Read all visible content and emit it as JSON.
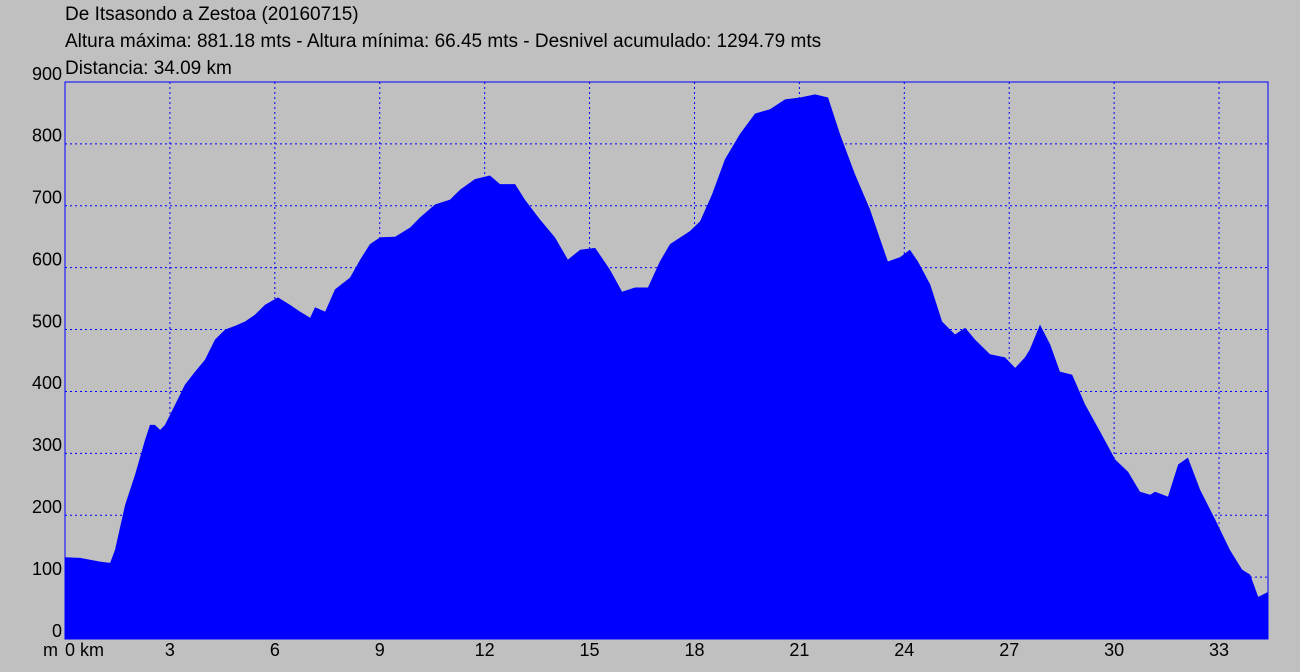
{
  "chart_data": {
    "type": "area",
    "title": "De Itsasondo a Zestoa (20160715)",
    "subtitle_lines": [
      "Altura máxima: 881.18 mts - Altura mínima: 66.45 mts - Desnivel acumulado: 1294.79 mts",
      "Distancia: 34.09 km"
    ],
    "y_unit": "m",
    "color": "#0000ff",
    "grid": true,
    "xlim": [
      0,
      34.4
    ],
    "ylim": [
      0,
      900
    ],
    "xticks": [
      {
        "value": 0,
        "label": "0 km"
      },
      3,
      6,
      9,
      12,
      15,
      18,
      21,
      24,
      27,
      30,
      33
    ],
    "yticks": [
      0,
      100,
      200,
      300,
      400,
      500,
      600,
      700,
      800,
      900
    ],
    "x": [
      0,
      0.43,
      1.0,
      1.29,
      1.43,
      1.72,
      2.0,
      2.29,
      2.43,
      2.57,
      2.72,
      2.86,
      3.15,
      3.43,
      3.72,
      4.0,
      4.29,
      4.58,
      4.86,
      5.15,
      5.43,
      5.72,
      6.09,
      6.43,
      6.72,
      7.01,
      7.15,
      7.44,
      7.72,
      8.15,
      8.44,
      8.72,
      9.01,
      9.44,
      9.87,
      10.15,
      10.58,
      11.01,
      11.3,
      11.72,
      12.15,
      12.44,
      12.87,
      13.15,
      13.58,
      14.01,
      14.38,
      14.73,
      15.16,
      15.58,
      15.93,
      16.3,
      16.67,
      17.01,
      17.3,
      17.87,
      18.16,
      18.5,
      18.87,
      19.3,
      19.73,
      20.16,
      20.59,
      21.02,
      21.45,
      21.82,
      22.16,
      22.59,
      23.02,
      23.31,
      23.53,
      23.88,
      24.16,
      24.39,
      24.74,
      25.08,
      25.45,
      25.74,
      26.02,
      26.45,
      26.88,
      27.17,
      27.45,
      27.59,
      27.88,
      28.17,
      28.45,
      28.8,
      29.17,
      29.6,
      30.03,
      30.4,
      30.74,
      31.03,
      31.17,
      31.54,
      31.83,
      32.11,
      32.46,
      32.89,
      33.31,
      33.66,
      33.89,
      34.12,
      34.4
    ],
    "y": [
      132,
      131,
      125,
      123,
      144,
      217,
      265,
      322,
      346,
      346,
      338,
      346,
      379,
      411,
      432,
      451,
      484,
      500,
      506,
      513,
      524,
      540,
      552,
      540,
      529,
      519,
      536,
      529,
      565,
      584,
      613,
      638,
      649,
      650,
      665,
      681,
      702,
      710,
      726,
      743,
      749,
      735,
      735,
      710,
      678,
      649,
      613,
      629,
      632,
      597,
      561,
      568,
      568,
      610,
      638,
      659,
      675,
      718,
      775,
      816,
      849,
      856,
      872,
      875,
      880,
      875,
      816,
      751,
      694,
      646,
      610,
      617,
      629,
      610,
      573,
      513,
      492,
      503,
      484,
      460,
      455,
      438,
      455,
      468,
      508,
      476,
      432,
      427,
      379,
      335,
      290,
      270,
      238,
      233,
      238,
      230,
      282,
      293,
      241,
      193,
      144,
      112,
      104,
      68,
      76
    ]
  }
}
